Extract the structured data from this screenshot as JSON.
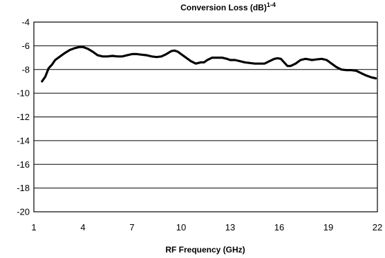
{
  "chart_data": {
    "type": "line",
    "title": "Conversion Loss (dB)",
    "title_superscript": "1-4",
    "xlabel": "RF Frequency (GHz)",
    "ylabel": "",
    "xlim": [
      1,
      22
    ],
    "ylim": [
      -20,
      -4
    ],
    "xticks": [
      1,
      4,
      7,
      10,
      13,
      16,
      19,
      22
    ],
    "yticks": [
      -4,
      -6,
      -8,
      -10,
      -12,
      -14,
      -16,
      -18,
      -20
    ],
    "grid": true,
    "legend": "none",
    "series": [
      {
        "color": "#000000",
        "x": [
          1.5,
          1.7,
          1.9,
          2.1,
          2.3,
          2.6,
          2.9,
          3.2,
          3.5,
          3.8,
          4.0,
          4.3,
          4.6,
          4.9,
          5.2,
          5.5,
          5.8,
          6.1,
          6.4,
          6.7,
          7.0,
          7.3,
          7.6,
          7.9,
          8.2,
          8.5,
          8.8,
          9.1,
          9.4,
          9.6,
          9.8,
          10.0,
          10.3,
          10.6,
          10.9,
          11.2,
          11.4,
          11.6,
          11.9,
          12.2,
          12.5,
          12.8,
          13.0,
          13.3,
          13.6,
          13.9,
          14.2,
          14.5,
          14.8,
          15.1,
          15.4,
          15.7,
          15.9,
          16.1,
          16.3,
          16.5,
          16.7,
          17.0,
          17.3,
          17.6,
          17.8,
          18.0,
          18.3,
          18.6,
          18.9,
          19.2,
          19.5,
          19.8,
          20.1,
          20.4,
          20.7,
          21.0,
          21.3,
          21.6,
          21.9
        ],
        "y": [
          -9.0,
          -8.6,
          -7.9,
          -7.6,
          -7.2,
          -6.9,
          -6.6,
          -6.35,
          -6.2,
          -6.1,
          -6.1,
          -6.25,
          -6.5,
          -6.8,
          -6.9,
          -6.9,
          -6.85,
          -6.9,
          -6.9,
          -6.8,
          -6.7,
          -6.7,
          -6.75,
          -6.8,
          -6.9,
          -6.95,
          -6.9,
          -6.7,
          -6.45,
          -6.4,
          -6.5,
          -6.7,
          -7.0,
          -7.3,
          -7.5,
          -7.4,
          -7.4,
          -7.2,
          -7.0,
          -7.0,
          -7.0,
          -7.1,
          -7.2,
          -7.2,
          -7.3,
          -7.4,
          -7.45,
          -7.5,
          -7.5,
          -7.5,
          -7.3,
          -7.1,
          -7.05,
          -7.1,
          -7.4,
          -7.7,
          -7.7,
          -7.5,
          -7.2,
          -7.1,
          -7.15,
          -7.2,
          -7.15,
          -7.1,
          -7.2,
          -7.5,
          -7.8,
          -8.0,
          -8.05,
          -8.05,
          -8.1,
          -8.3,
          -8.5,
          -8.65,
          -8.75
        ]
      }
    ]
  }
}
